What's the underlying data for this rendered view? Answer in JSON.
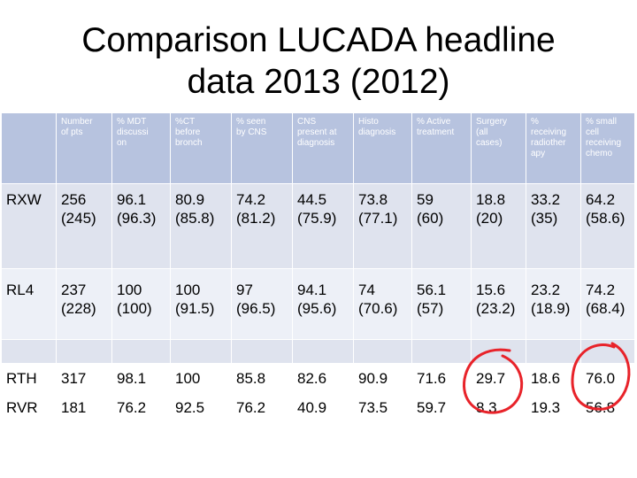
{
  "title": {
    "line1": "Comparison LUCADA headline",
    "line2": "data 2013 (2012)"
  },
  "table": {
    "headers": [
      "",
      "Number of pts",
      "% MDT discussi on",
      "%CT before bronch",
      "% seen by CNS",
      "CNS present at diagnosis",
      "Histo diagnosis",
      "% Active treatment",
      "Surgery (all cases)",
      "% receiving radiother apy",
      "% small cell receiving chemo"
    ],
    "header_lines": [
      [],
      [
        "Number",
        "of pts"
      ],
      [
        "% MDT",
        "discussi",
        "on"
      ],
      [
        "%CT",
        "before",
        "bronch"
      ],
      [
        "% seen",
        "by CNS"
      ],
      [
        "CNS",
        "present at",
        "diagnosis"
      ],
      [
        "Histo",
        "diagnosis"
      ],
      [
        "% Active",
        "treatment"
      ],
      [
        "Surgery",
        "(all",
        "cases)"
      ],
      [
        "%",
        "receiving",
        "radiother",
        "apy"
      ],
      [
        "% small",
        "cell",
        "receiving",
        "chemo"
      ]
    ],
    "rows": [
      {
        "label": "RXW",
        "cells": [
          [
            "256",
            "(245)"
          ],
          [
            "96.1",
            "(96.3)"
          ],
          [
            "80.9",
            "(85.8)"
          ],
          [
            "74.2",
            "(81.2)"
          ],
          [
            "44.5",
            "(75.9)"
          ],
          [
            "73.8",
            "(77.1)"
          ],
          [
            "59",
            "(60)"
          ],
          [
            "18.8",
            "(20)"
          ],
          [
            "33.2",
            "(35)"
          ],
          [
            "64.2",
            "(58.6)"
          ]
        ]
      },
      {
        "label": "RL4",
        "cells": [
          [
            "237",
            "(228)"
          ],
          [
            "100",
            "(100)"
          ],
          [
            "100",
            "(91.5)"
          ],
          [
            "97",
            "(96.5)"
          ],
          [
            "94.1",
            "(95.6)"
          ],
          [
            "74",
            "(70.6)"
          ],
          [
            "56.1",
            "(57)"
          ],
          [
            "15.6",
            "(23.2)"
          ],
          [
            "23.2",
            "(18.9)"
          ],
          [
            "74.2",
            "(68.4)"
          ]
        ]
      },
      {
        "label": "",
        "cells": [
          [],
          [],
          [],
          [],
          [],
          [],
          [],
          [],
          [],
          []
        ]
      },
      {
        "label": "RTH",
        "cells": [
          [
            "317"
          ],
          [
            "98.1"
          ],
          [
            "100"
          ],
          [
            "85.8"
          ],
          [
            "82.6"
          ],
          [
            "90.9"
          ],
          [
            "71.6"
          ],
          [
            "29.7"
          ],
          [
            "18.6"
          ],
          [
            "76.0"
          ]
        ]
      },
      {
        "label": "RVR",
        "cells": [
          [
            "181"
          ],
          [
            "76.2"
          ],
          [
            "92.5"
          ],
          [
            "76.2"
          ],
          [
            "40.9"
          ],
          [
            "73.5"
          ],
          [
            "59.7"
          ],
          [
            "8.3"
          ],
          [
            "19.3"
          ],
          [
            "56.8"
          ]
        ]
      }
    ]
  },
  "annotations": [
    {
      "type": "hand-drawn-circle",
      "color": "#e8232a",
      "around_column": "Surgery (all cases)",
      "around_rows": [
        "RTH",
        "RVR"
      ]
    },
    {
      "type": "hand-drawn-circle",
      "color": "#e8232a",
      "around_column": "% small cell receiving chemo",
      "around_rows": [
        "RTH",
        "RVR"
      ]
    }
  ]
}
